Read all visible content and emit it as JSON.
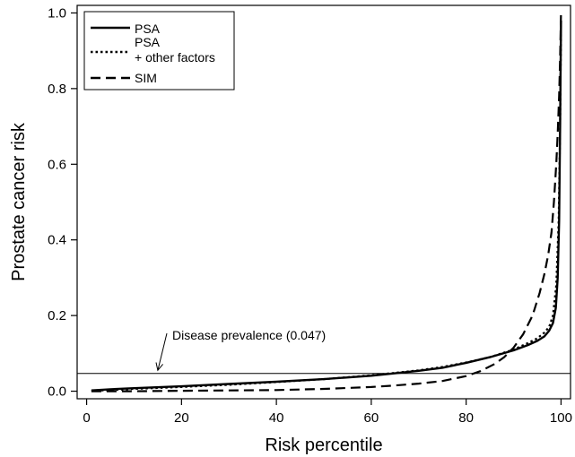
{
  "chart_data": {
    "type": "line",
    "title": "",
    "xlabel": "Risk percentile",
    "ylabel": "Prostate cancer risk",
    "xlim": [
      -2,
      102
    ],
    "ylim": [
      -0.02,
      1.02
    ],
    "xticks": [
      0,
      20,
      40,
      60,
      80,
      100
    ],
    "yticks": [
      0.0,
      0.2,
      0.4,
      0.6,
      0.8,
      1.0
    ],
    "xtick_labels": [
      "0",
      "20",
      "40",
      "60",
      "80",
      "100"
    ],
    "ytick_labels": [
      "0.0",
      "0.2",
      "0.4",
      "0.6",
      "0.8",
      "1.0"
    ],
    "grid": false,
    "legend_position": "top-left",
    "legend": [
      {
        "lines": [
          "PSA"
        ],
        "style": "solid"
      },
      {
        "lines": [
          "PSA",
          "+ other factors"
        ],
        "style": "dotted"
      },
      {
        "lines": [
          "SIM"
        ],
        "style": "dashed"
      }
    ],
    "reference_line": {
      "y": 0.047
    },
    "annotation": {
      "text": "Disease prevalence (0.047)",
      "arrow_to": [
        15,
        0.055
      ]
    },
    "series": [
      {
        "name": "PSA",
        "style": "solid",
        "x": [
          1,
          5,
          10,
          20,
          30,
          40,
          50,
          60,
          70,
          75,
          80,
          85,
          90,
          93,
          95,
          96.5,
          97.5,
          98.3,
          98.9,
          99.3,
          99.6,
          99.8,
          100
        ],
        "y": [
          0.002,
          0.005,
          0.008,
          0.013,
          0.019,
          0.025,
          0.032,
          0.041,
          0.054,
          0.062,
          0.075,
          0.09,
          0.108,
          0.122,
          0.133,
          0.145,
          0.16,
          0.18,
          0.22,
          0.3,
          0.45,
          0.7,
          0.98
        ]
      },
      {
        "name": "PSA + other factors",
        "style": "dotted",
        "x": [
          1,
          5,
          10,
          20,
          30,
          40,
          50,
          60,
          70,
          75,
          80,
          85,
          90,
          93,
          95,
          96.5,
          97.5,
          98.3,
          99,
          99.5,
          99.8,
          100
        ],
        "y": [
          0.001,
          0.003,
          0.006,
          0.011,
          0.017,
          0.024,
          0.032,
          0.042,
          0.055,
          0.064,
          0.076,
          0.09,
          0.11,
          0.127,
          0.14,
          0.155,
          0.17,
          0.2,
          0.28,
          0.45,
          0.7,
          0.97
        ]
      },
      {
        "name": "SIM",
        "style": "dashed",
        "x": [
          1,
          10,
          20,
          30,
          40,
          50,
          60,
          65,
          70,
          75,
          80,
          83,
          86,
          88,
          90,
          92,
          94,
          95.5,
          96.5,
          97.3,
          98,
          98.5,
          99,
          99.3,
          99.6,
          99.8,
          100
        ],
        "y": [
          0.0,
          0.0,
          0.001,
          0.002,
          0.003,
          0.006,
          0.011,
          0.015,
          0.02,
          0.027,
          0.04,
          0.053,
          0.072,
          0.09,
          0.115,
          0.15,
          0.2,
          0.26,
          0.31,
          0.36,
          0.42,
          0.5,
          0.6,
          0.68,
          0.78,
          0.88,
          1.0
        ]
      }
    ]
  }
}
